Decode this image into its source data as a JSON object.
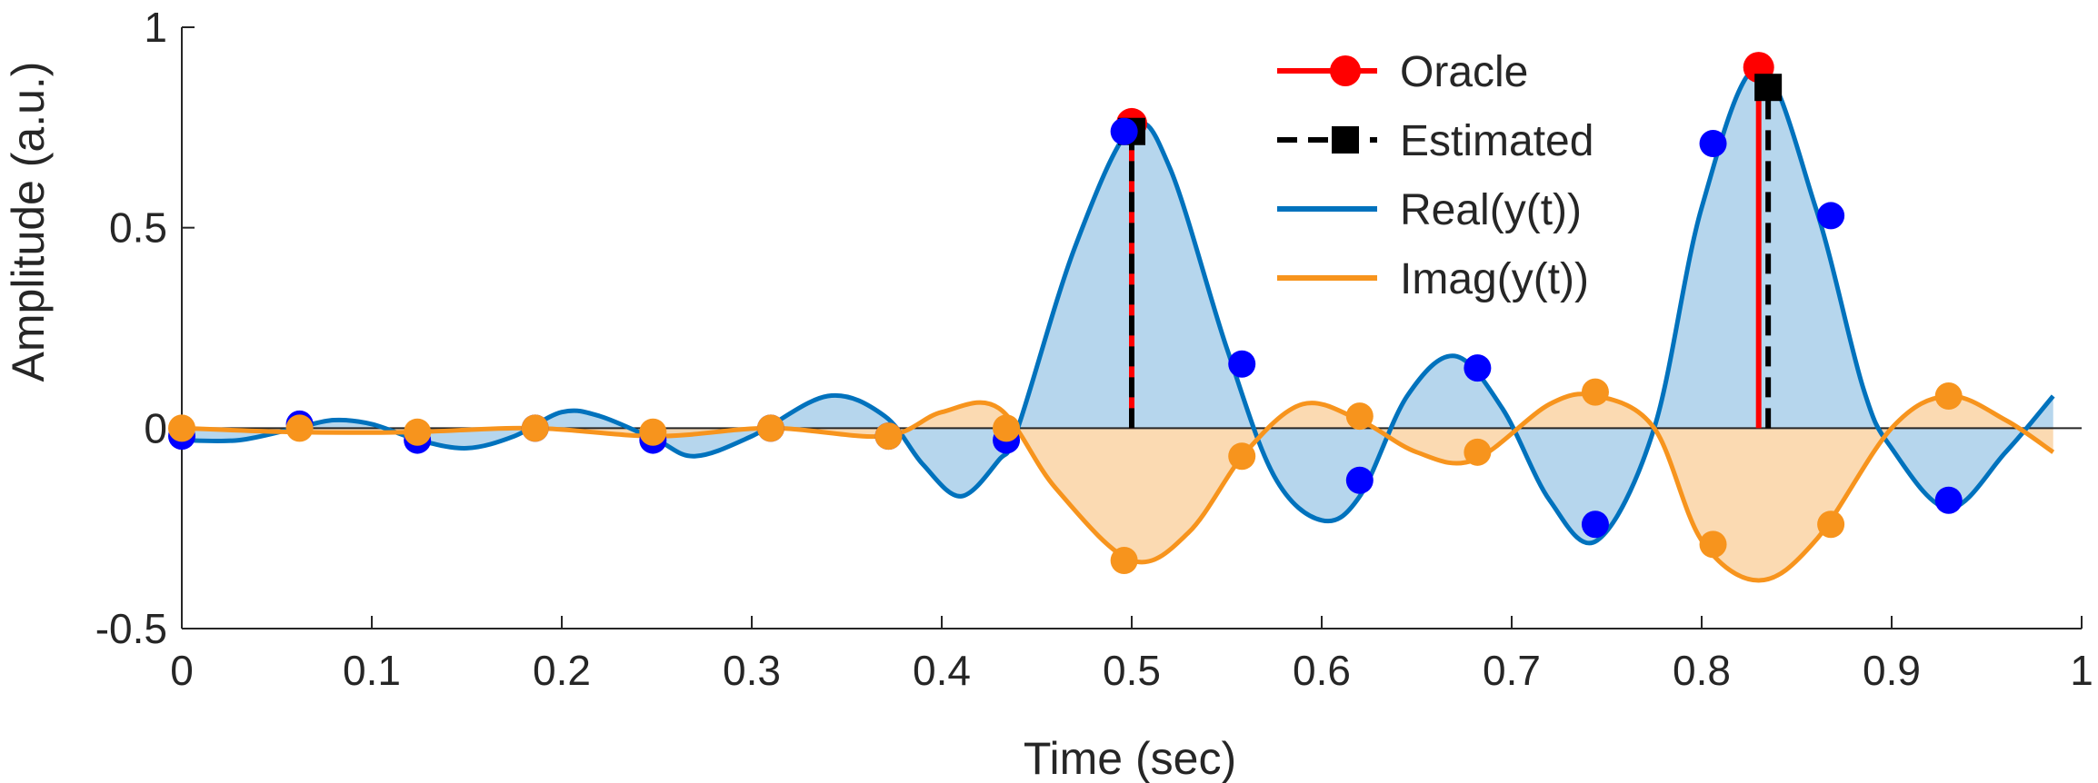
{
  "chart_data": {
    "type": "line",
    "title": "",
    "xlabel": "Time (sec)",
    "ylabel": "Amplitude (a.u.)",
    "xlim": [
      0,
      1
    ],
    "ylim": [
      -0.5,
      1
    ],
    "x_ticks": [
      0,
      0.1,
      0.2,
      0.3,
      0.4,
      0.5,
      0.6,
      0.7,
      0.8,
      0.9,
      1
    ],
    "x_tick_labels": [
      "0",
      "0.1",
      "0.2",
      "0.3",
      "0.4",
      "0.5",
      "0.6",
      "0.7",
      "0.8",
      "0.9",
      "1"
    ],
    "y_ticks": [
      -0.5,
      0,
      0.5,
      1
    ],
    "y_tick_labels": [
      "-0.5",
      "0",
      "0.5",
      "1"
    ],
    "grid": false,
    "legend_position": "top-right",
    "colors": {
      "real": "#0072BD",
      "real_fill": "#A9CFEA",
      "imag": "#F7941D",
      "imag_fill": "#FAD4A4",
      "oracle": "#FF0000",
      "estimated": "#000000",
      "real_samples": "#0000FF",
      "imag_samples": "#F7941D"
    },
    "legend": [
      {
        "name": "Oracle",
        "key": "oracle",
        "style": "solid-circle"
      },
      {
        "name": "Estimated",
        "key": "estimated",
        "style": "dashed-square"
      },
      {
        "name": "Real(y(t))",
        "key": "real",
        "style": "line"
      },
      {
        "name": "Imag(y(t))",
        "key": "imag",
        "style": "line"
      }
    ],
    "series": [
      {
        "name": "Real(y(t))",
        "x": [
          0,
          0.03,
          0.06,
          0.08,
          0.1,
          0.125,
          0.15,
          0.175,
          0.2,
          0.22,
          0.25,
          0.27,
          0.3,
          0.34,
          0.37,
          0.39,
          0.41,
          0.43,
          0.44,
          0.47,
          0.5,
          0.52,
          0.55,
          0.575,
          0.6,
          0.62,
          0.645,
          0.67,
          0.695,
          0.72,
          0.745,
          0.775,
          0.8,
          0.83,
          0.86,
          0.885,
          0.9,
          0.93,
          0.96,
          0.985
        ],
        "y": [
          -0.03,
          -0.03,
          0.0,
          0.02,
          0.01,
          -0.03,
          -0.05,
          -0.02,
          0.04,
          0.03,
          -0.03,
          -0.07,
          -0.02,
          0.08,
          0.03,
          -0.09,
          -0.17,
          -0.08,
          0.0,
          0.45,
          0.75,
          0.65,
          0.2,
          -0.12,
          -0.23,
          -0.17,
          0.08,
          0.18,
          0.05,
          -0.18,
          -0.28,
          0.0,
          0.55,
          0.9,
          0.55,
          0.1,
          -0.05,
          -0.2,
          -0.06,
          0.08
        ]
      },
      {
        "name": "Imag(y(t))",
        "x": [
          0,
          0.06,
          0.12,
          0.185,
          0.25,
          0.31,
          0.37,
          0.4,
          0.43,
          0.46,
          0.5,
          0.53,
          0.56,
          0.59,
          0.62,
          0.65,
          0.68,
          0.72,
          0.745,
          0.775,
          0.8,
          0.83,
          0.86,
          0.9,
          0.93,
          0.96,
          0.985
        ],
        "y": [
          0.0,
          -0.01,
          -0.01,
          0.0,
          -0.02,
          0.0,
          -0.02,
          0.04,
          0.05,
          -0.15,
          -0.33,
          -0.26,
          -0.06,
          0.06,
          0.02,
          -0.06,
          -0.08,
          0.06,
          0.08,
          0.0,
          -0.28,
          -0.38,
          -0.28,
          0.0,
          0.08,
          0.02,
          -0.06
        ]
      }
    ],
    "real_samples": {
      "x": [
        0,
        0.062,
        0.124,
        0.186,
        0.248,
        0.31,
        0.372,
        0.434,
        0.496,
        0.558,
        0.62,
        0.682,
        0.744,
        0.806,
        0.868,
        0.93
      ],
      "y": [
        -0.02,
        0.01,
        -0.03,
        0.0,
        -0.03,
        0.0,
        -0.02,
        -0.03,
        0.74,
        0.16,
        -0.13,
        0.15,
        -0.24,
        0.71,
        0.53,
        -0.18
      ]
    },
    "imag_samples": {
      "x": [
        0,
        0.062,
        0.124,
        0.186,
        0.248,
        0.31,
        0.372,
        0.434,
        0.496,
        0.558,
        0.62,
        0.682,
        0.744,
        0.806,
        0.868,
        0.93
      ],
      "y": [
        0.0,
        0.0,
        -0.01,
        0.0,
        -0.01,
        0.0,
        -0.02,
        0.0,
        -0.33,
        -0.07,
        0.03,
        -0.06,
        0.09,
        -0.29,
        -0.24,
        0.08
      ]
    },
    "oracle": {
      "x": [
        0.5,
        0.83
      ],
      "y": [
        0.76,
        0.9
      ]
    },
    "estimated": {
      "x": [
        0.5,
        0.835
      ],
      "y": [
        0.74,
        0.85
      ]
    }
  }
}
